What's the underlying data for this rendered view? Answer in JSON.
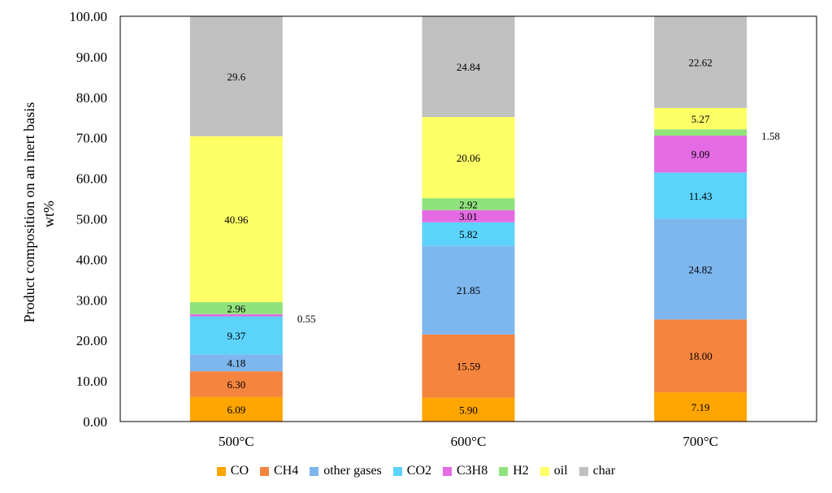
{
  "chart_data": {
    "type": "bar",
    "stacked": true,
    "ylabel_line1": "Product composition on an inert basis",
    "ylabel_line2": "wt%",
    "ylim": [
      0,
      100
    ],
    "yticks": [
      "0.00",
      "10.00",
      "20.00",
      "30.00",
      "40.00",
      "50.00",
      "60.00",
      "70.00",
      "80.00",
      "90.00",
      "100.00"
    ],
    "categories": [
      "500°C",
      "600°C",
      "700°C"
    ],
    "legend_position": "bottom",
    "series": [
      {
        "name": "CO",
        "color": "#FFA500",
        "values": [
          6.09,
          5.9,
          7.19
        ],
        "labels": [
          "6.09",
          "5.90",
          "7.19"
        ]
      },
      {
        "name": "CH4",
        "color": "#F5843E",
        "values": [
          6.3,
          15.59,
          18.0
        ],
        "labels": [
          "6.30",
          "15.59",
          "18.00"
        ]
      },
      {
        "name": "other gases",
        "color": "#7EB6EE",
        "values": [
          4.18,
          21.85,
          24.82
        ],
        "labels": [
          "4.18",
          "21.85",
          "24.82"
        ]
      },
      {
        "name": "CO2",
        "color": "#5BD3FB",
        "values": [
          9.37,
          5.82,
          11.43
        ],
        "labels": [
          "9.37",
          "5.82",
          "11.43"
        ]
      },
      {
        "name": "C3H8",
        "color": "#E46BE4",
        "values": [
          0.55,
          3.01,
          9.09
        ],
        "labels": [
          "0.55",
          "3.01",
          "9.09"
        ]
      },
      {
        "name": "H2",
        "color": "#90E27C",
        "values": [
          2.96,
          2.92,
          1.58
        ],
        "labels": [
          "2.96",
          "2.92",
          "1.58"
        ]
      },
      {
        "name": "oil",
        "color": "#FFFF66",
        "values": [
          40.96,
          20.06,
          5.27
        ],
        "labels": [
          "40.96",
          "20.06",
          "5.27"
        ]
      },
      {
        "name": "char",
        "color": "#C0C0C0",
        "values": [
          29.6,
          24.84,
          22.62
        ],
        "labels": [
          "29.6",
          "24.84",
          "22.62"
        ]
      }
    ]
  }
}
